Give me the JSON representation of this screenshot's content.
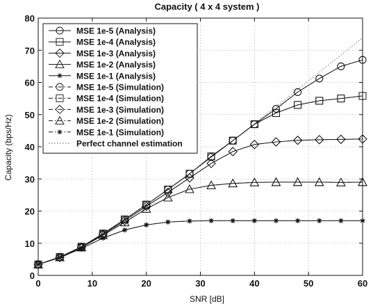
{
  "chart_data": {
    "type": "line",
    "title": "Capacity ( 4 x 4 system )",
    "xlabel": "SNR [dB]",
    "ylabel": "Capacity (bps/Hz)",
    "xlim": [
      0,
      60
    ],
    "ylim": [
      0,
      80
    ],
    "xticks": [
      0,
      10,
      20,
      30,
      40,
      50,
      60
    ],
    "yticks": [
      0,
      10,
      20,
      30,
      40,
      50,
      60,
      70,
      80
    ],
    "grid": true,
    "legend_position": "top-left",
    "series": [
      {
        "name": "MSE 1e-5 (Analysis)",
        "marker": "circle",
        "style": "solid",
        "x": [
          0,
          4,
          8,
          12,
          16,
          20,
          24,
          28,
          32,
          36,
          40,
          44,
          48,
          52,
          56,
          60
        ],
        "y": [
          3.4,
          5.7,
          8.9,
          13.0,
          17.4,
          22.0,
          26.7,
          31.6,
          36.8,
          41.9,
          47.0,
          51.8,
          57.0,
          61.2,
          65.0,
          67.0
        ]
      },
      {
        "name": "MSE 1e-4 (Analysis)",
        "marker": "square",
        "style": "solid",
        "x": [
          0,
          4,
          8,
          12,
          16,
          20,
          24,
          28,
          32,
          36,
          40,
          44,
          48,
          52,
          56,
          60
        ],
        "y": [
          3.4,
          5.7,
          8.9,
          13.0,
          17.4,
          22.0,
          26.7,
          31.6,
          37.0,
          41.9,
          47.0,
          50.5,
          53.0,
          54.3,
          55.0,
          55.8
        ]
      },
      {
        "name": "MSE 1e-3 (Analysis)",
        "marker": "diamond",
        "style": "solid",
        "x": [
          0,
          4,
          8,
          12,
          16,
          20,
          24,
          28,
          32,
          36,
          40,
          44,
          48,
          52,
          56,
          60
        ],
        "y": [
          3.4,
          5.6,
          8.8,
          12.8,
          17.0,
          21.5,
          25.8,
          30.3,
          34.8,
          38.5,
          40.7,
          41.5,
          42.0,
          42.2,
          42.3,
          42.4
        ]
      },
      {
        "name": "MSE 1e-2 (Analysis)",
        "marker": "triangle",
        "style": "solid",
        "x": [
          0,
          4,
          8,
          12,
          16,
          20,
          24,
          28,
          32,
          36,
          40,
          44,
          48,
          52,
          56,
          60
        ],
        "y": [
          3.4,
          5.6,
          8.7,
          12.5,
          16.5,
          20.7,
          24.2,
          26.8,
          28.0,
          28.6,
          28.9,
          29.0,
          29.0,
          29.0,
          28.9,
          29.0
        ]
      },
      {
        "name": "MSE 1e-1 (Analysis)",
        "marker": "star",
        "style": "solid",
        "x": [
          0,
          4,
          8,
          12,
          16,
          20,
          24,
          28,
          32,
          36,
          40,
          44,
          48,
          52,
          56,
          60
        ],
        "y": [
          3.4,
          5.5,
          8.4,
          11.6,
          14.1,
          15.7,
          16.6,
          16.9,
          17.0,
          17.0,
          17.0,
          17.0,
          17.0,
          17.0,
          17.0,
          17.0
        ]
      },
      {
        "name": "MSE 1e-5 (Simulation)",
        "marker": "circle",
        "style": "dashdot",
        "x": [
          0,
          4,
          8,
          12,
          16,
          20,
          24,
          28,
          32,
          36,
          40,
          44,
          48,
          52,
          56,
          60
        ],
        "y": [
          3.4,
          5.7,
          8.9,
          13.0,
          17.4,
          22.0,
          26.7,
          31.6,
          36.8,
          41.9,
          47.0,
          51.8,
          57.0,
          61.2,
          65.0,
          67.0
        ]
      },
      {
        "name": "MSE 1e-4 (Simulation)",
        "marker": "square",
        "style": "dashdot",
        "x": [
          0,
          4,
          8,
          12,
          16,
          20,
          24,
          28,
          32,
          36,
          40,
          44,
          48,
          52,
          56,
          60
        ],
        "y": [
          3.4,
          5.7,
          8.9,
          13.0,
          17.4,
          22.0,
          26.7,
          31.6,
          37.0,
          41.9,
          47.0,
          50.5,
          53.0,
          54.3,
          55.0,
          55.8
        ]
      },
      {
        "name": "MSE 1e-3 (Simulation)",
        "marker": "diamond",
        "style": "dashdot",
        "x": [
          0,
          4,
          8,
          12,
          16,
          20,
          24,
          28,
          32,
          36,
          40,
          44,
          48,
          52,
          56,
          60
        ],
        "y": [
          3.4,
          5.6,
          8.8,
          12.8,
          17.0,
          21.5,
          25.8,
          30.3,
          34.8,
          38.5,
          40.7,
          41.5,
          42.0,
          42.2,
          42.3,
          42.4
        ]
      },
      {
        "name": "MSE 1e-2 (Simulation)",
        "marker": "triangle",
        "style": "dashdot",
        "x": [
          0,
          4,
          8,
          12,
          16,
          20,
          24,
          28,
          32,
          36,
          40,
          44,
          48,
          52,
          56,
          60
        ],
        "y": [
          3.4,
          5.6,
          8.7,
          12.5,
          16.5,
          20.7,
          24.2,
          26.8,
          28.0,
          28.6,
          28.9,
          29.0,
          29.0,
          29.0,
          28.9,
          29.0
        ]
      },
      {
        "name": "MSE 1e-1 (Simulation)",
        "marker": "star",
        "style": "dashdot",
        "x": [
          0,
          4,
          8,
          12,
          16,
          20,
          24,
          28,
          32,
          36,
          40,
          44,
          48,
          52,
          56,
          60
        ],
        "y": [
          3.4,
          5.5,
          8.4,
          11.6,
          14.1,
          15.7,
          16.6,
          16.9,
          17.0,
          17.0,
          17.0,
          17.0,
          17.0,
          17.0,
          17.0,
          17.0
        ]
      },
      {
        "name": "Perfect channel estimation",
        "marker": "none",
        "style": "dotted",
        "x": [
          0,
          4,
          8,
          12,
          16,
          20,
          24,
          28,
          32,
          36,
          40,
          44,
          48,
          52,
          56,
          60
        ],
        "y": [
          3.4,
          5.7,
          8.9,
          13.0,
          17.4,
          22.0,
          26.7,
          31.6,
          36.9,
          41.9,
          47.2,
          52.5,
          57.8,
          63.2,
          68.5,
          73.9
        ]
      }
    ]
  }
}
